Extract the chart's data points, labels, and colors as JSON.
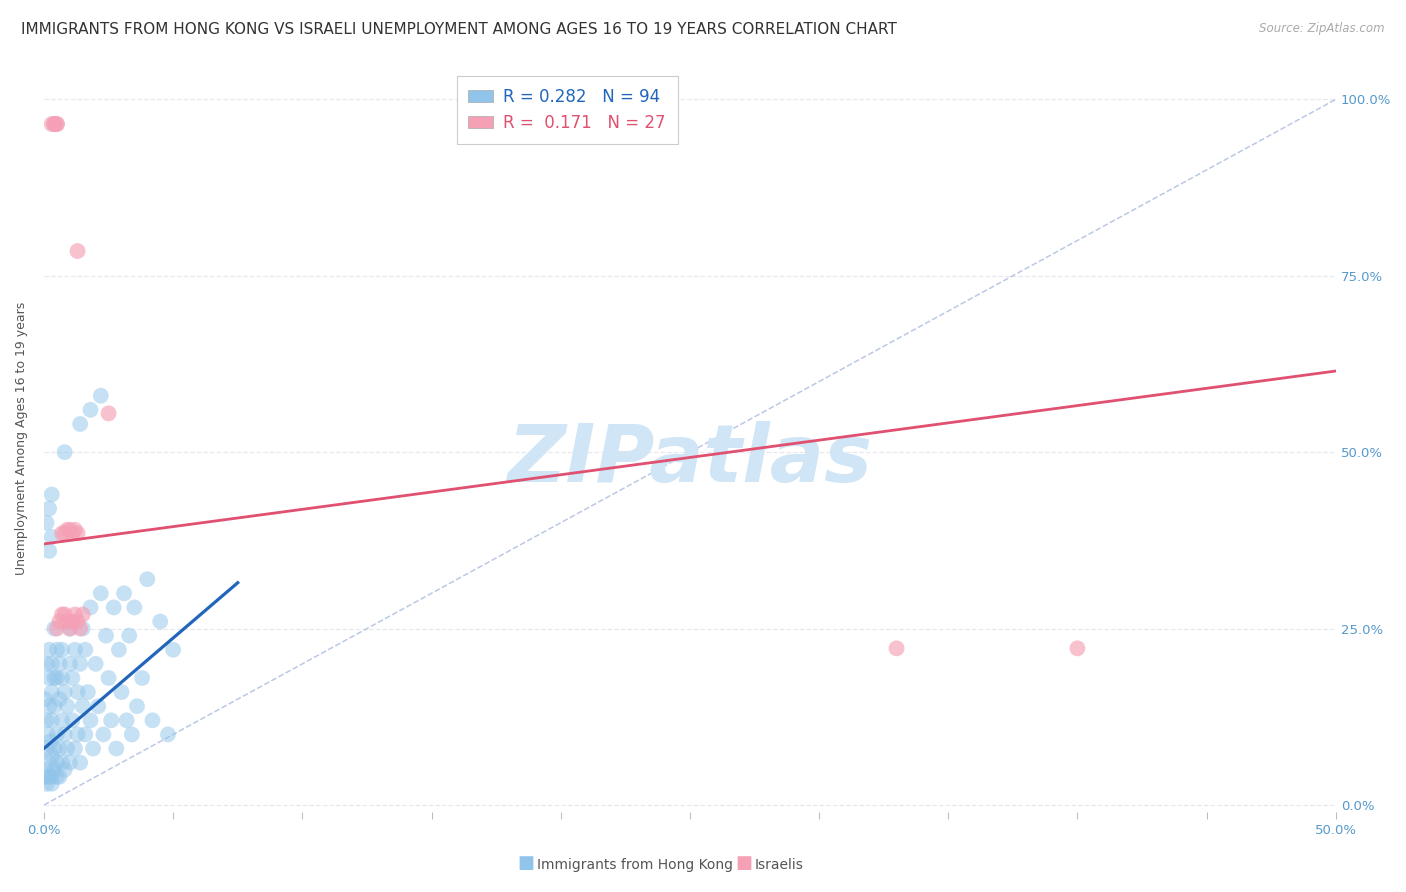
{
  "title": "IMMIGRANTS FROM HONG KONG VS ISRAELI UNEMPLOYMENT AMONG AGES 16 TO 19 YEARS CORRELATION CHART",
  "source": "Source: ZipAtlas.com",
  "ylabel": "Unemployment Among Ages 16 to 19 years",
  "xlim": [
    0.0,
    0.5
  ],
  "ylim": [
    -0.01,
    1.05
  ],
  "xticks": [
    0.0,
    0.05,
    0.1,
    0.15,
    0.2,
    0.25,
    0.3,
    0.35,
    0.4,
    0.45,
    0.5
  ],
  "xticklabels_show": {
    "0.0": "0.0%",
    "0.5": "50.0%"
  },
  "yticks": [
    0.0,
    0.25,
    0.5,
    0.75,
    1.0
  ],
  "yticklabels_right": [
    "0.0%",
    "25.0%",
    "50.0%",
    "75.0%",
    "100.0%"
  ],
  "legend_line1": "R = 0.282   N = 94",
  "legend_line2": "R =  0.171   N = 27",
  "watermark": "ZIPatlas",
  "blue_scatter_x": [
    0.0005,
    0.001,
    0.001,
    0.001,
    0.001,
    0.0015,
    0.002,
    0.002,
    0.002,
    0.002,
    0.0025,
    0.003,
    0.003,
    0.003,
    0.003,
    0.003,
    0.004,
    0.004,
    0.004,
    0.004,
    0.005,
    0.005,
    0.005,
    0.005,
    0.005,
    0.006,
    0.006,
    0.006,
    0.006,
    0.007,
    0.007,
    0.007,
    0.007,
    0.008,
    0.008,
    0.008,
    0.009,
    0.009,
    0.01,
    0.01,
    0.01,
    0.011,
    0.011,
    0.012,
    0.012,
    0.013,
    0.013,
    0.014,
    0.014,
    0.015,
    0.015,
    0.016,
    0.016,
    0.017,
    0.018,
    0.018,
    0.019,
    0.02,
    0.021,
    0.022,
    0.023,
    0.024,
    0.025,
    0.026,
    0.027,
    0.028,
    0.029,
    0.03,
    0.031,
    0.032,
    0.033,
    0.034,
    0.035,
    0.036,
    0.038,
    0.04,
    0.042,
    0.045,
    0.048,
    0.05,
    0.0005,
    0.001,
    0.002,
    0.003,
    0.004,
    0.003,
    0.002,
    0.001,
    0.002,
    0.003,
    0.022,
    0.018,
    0.014,
    0.008
  ],
  "blue_scatter_y": [
    0.15,
    0.12,
    0.08,
    0.05,
    0.2,
    0.1,
    0.18,
    0.06,
    0.14,
    0.22,
    0.09,
    0.16,
    0.04,
    0.12,
    0.2,
    0.07,
    0.18,
    0.08,
    0.14,
    0.25,
    0.1,
    0.06,
    0.18,
    0.22,
    0.04,
    0.15,
    0.08,
    0.2,
    0.04,
    0.12,
    0.18,
    0.06,
    0.22,
    0.1,
    0.16,
    0.05,
    0.14,
    0.08,
    0.2,
    0.06,
    0.25,
    0.12,
    0.18,
    0.08,
    0.22,
    0.1,
    0.16,
    0.06,
    0.2,
    0.14,
    0.25,
    0.1,
    0.22,
    0.16,
    0.12,
    0.28,
    0.08,
    0.2,
    0.14,
    0.3,
    0.1,
    0.24,
    0.18,
    0.12,
    0.28,
    0.08,
    0.22,
    0.16,
    0.3,
    0.12,
    0.24,
    0.1,
    0.28,
    0.14,
    0.18,
    0.32,
    0.12,
    0.26,
    0.1,
    0.22,
    0.04,
    0.03,
    0.04,
    0.03,
    0.05,
    0.38,
    0.36,
    0.4,
    0.42,
    0.44,
    0.58,
    0.56,
    0.54,
    0.5
  ],
  "pink_scatter_x": [
    0.003,
    0.004,
    0.004,
    0.005,
    0.005,
    0.007,
    0.008,
    0.009,
    0.01,
    0.011,
    0.012,
    0.013,
    0.013,
    0.025,
    0.33,
    0.4,
    0.005,
    0.006,
    0.007,
    0.008,
    0.009,
    0.01,
    0.011,
    0.012,
    0.013,
    0.014,
    0.015
  ],
  "pink_scatter_y": [
    0.965,
    0.965,
    0.965,
    0.965,
    0.965,
    0.385,
    0.385,
    0.39,
    0.39,
    0.385,
    0.39,
    0.385,
    0.785,
    0.555,
    0.222,
    0.222,
    0.25,
    0.26,
    0.27,
    0.27,
    0.26,
    0.25,
    0.26,
    0.27,
    0.26,
    0.25,
    0.27
  ],
  "blue_line_x": [
    0.0,
    0.075
  ],
  "blue_line_y": [
    0.08,
    0.315
  ],
  "pink_line_x": [
    0.0,
    0.5
  ],
  "pink_line_y": [
    0.37,
    0.615
  ],
  "diag_line_x": [
    0.0,
    0.5
  ],
  "diag_line_y": [
    0.0,
    1.0
  ],
  "blue_color": "#90c4ea",
  "pink_color": "#f5a0b5",
  "blue_line_color": "#2266bb",
  "pink_line_color": "#e05070",
  "diag_line_color": "#aabbdd",
  "grid_color": "#e8e8f0",
  "right_tick_color": "#5599cc",
  "background_color": "#ffffff",
  "title_fontsize": 11,
  "axis_label_fontsize": 9,
  "tick_fontsize": 9.5,
  "legend_fontsize": 12,
  "watermark_fontsize": 58,
  "watermark_color": "#d0e5f5",
  "source_color": "#aaaaaa"
}
